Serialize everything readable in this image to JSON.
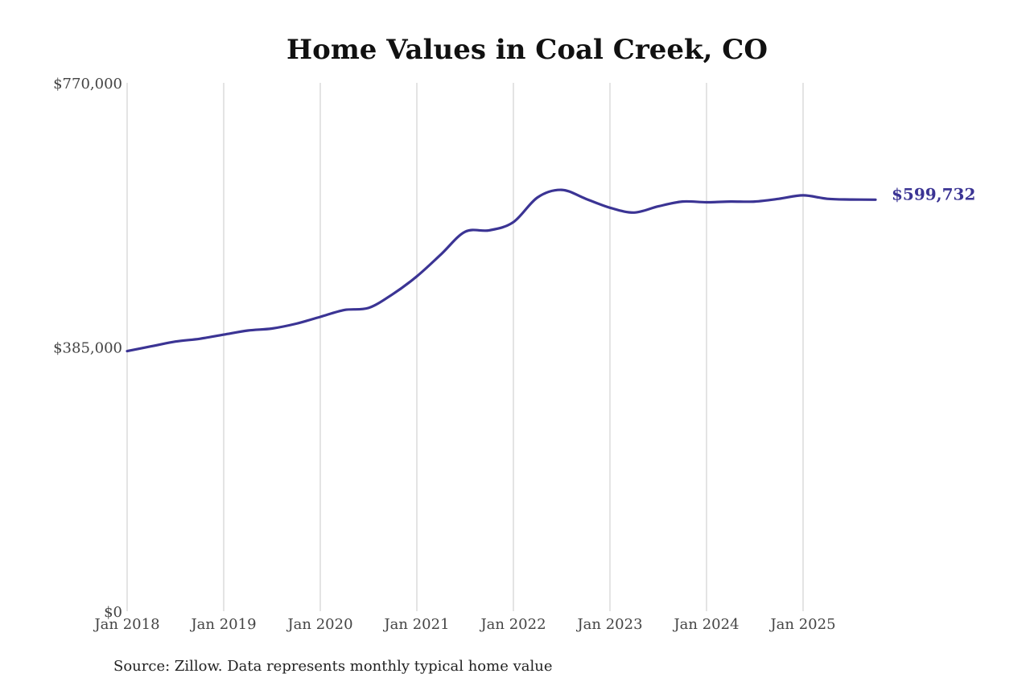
{
  "chart_data": {
    "type": "line",
    "title": "Home Values in Coal Creek, CO",
    "source": "Source: Zillow. Data represents monthly typical home value",
    "line_color": "#3b3494",
    "grid_color": "#c8c8c8",
    "x_range": [
      "2017-12",
      "2025-12"
    ],
    "ylim": [
      0,
      770000
    ],
    "y_ticks": [
      {
        "value": 0,
        "label": "$0"
      },
      {
        "value": 385000,
        "label": "$385,000"
      },
      {
        "value": 770000,
        "label": "$770,000"
      }
    ],
    "x_ticks": [
      {
        "date": "2018-01",
        "label": "Jan 2018"
      },
      {
        "date": "2019-01",
        "label": "Jan 2019"
      },
      {
        "date": "2020-01",
        "label": "Jan 2020"
      },
      {
        "date": "2021-01",
        "label": "Jan 2021"
      },
      {
        "date": "2022-01",
        "label": "Jan 2022"
      },
      {
        "date": "2023-01",
        "label": "Jan 2023"
      },
      {
        "date": "2024-01",
        "label": "Jan 2024"
      },
      {
        "date": "2025-01",
        "label": "Jan 2025"
      }
    ],
    "vertical_grid": true,
    "series": [
      {
        "end_label": "$599,732",
        "points": [
          {
            "x": "2018-01",
            "y": 379000
          },
          {
            "x": "2018-04",
            "y": 386000
          },
          {
            "x": "2018-07",
            "y": 393000
          },
          {
            "x": "2018-10",
            "y": 397000
          },
          {
            "x": "2019-01",
            "y": 403000
          },
          {
            "x": "2019-04",
            "y": 409000
          },
          {
            "x": "2019-07",
            "y": 412000
          },
          {
            "x": "2019-10",
            "y": 419000
          },
          {
            "x": "2020-01",
            "y": 429000
          },
          {
            "x": "2020-04",
            "y": 439000
          },
          {
            "x": "2020-07",
            "y": 442000
          },
          {
            "x": "2020-10",
            "y": 462000
          },
          {
            "x": "2021-01",
            "y": 488000
          },
          {
            "x": "2021-04",
            "y": 520000
          },
          {
            "x": "2021-07",
            "y": 553000
          },
          {
            "x": "2021-10",
            "y": 555000
          },
          {
            "x": "2022-01",
            "y": 567000
          },
          {
            "x": "2022-04",
            "y": 603000
          },
          {
            "x": "2022-07",
            "y": 614000
          },
          {
            "x": "2022-10",
            "y": 601000
          },
          {
            "x": "2023-01",
            "y": 588000
          },
          {
            "x": "2023-04",
            "y": 581000
          },
          {
            "x": "2023-07",
            "y": 590000
          },
          {
            "x": "2023-10",
            "y": 597000
          },
          {
            "x": "2024-01",
            "y": 596000
          },
          {
            "x": "2024-04",
            "y": 597000
          },
          {
            "x": "2024-07",
            "y": 597000
          },
          {
            "x": "2024-10",
            "y": 601000
          },
          {
            "x": "2025-01",
            "y": 606000
          },
          {
            "x": "2025-04",
            "y": 601000
          },
          {
            "x": "2025-07",
            "y": 600000
          },
          {
            "x": "2025-10",
            "y": 599732
          }
        ]
      }
    ]
  }
}
